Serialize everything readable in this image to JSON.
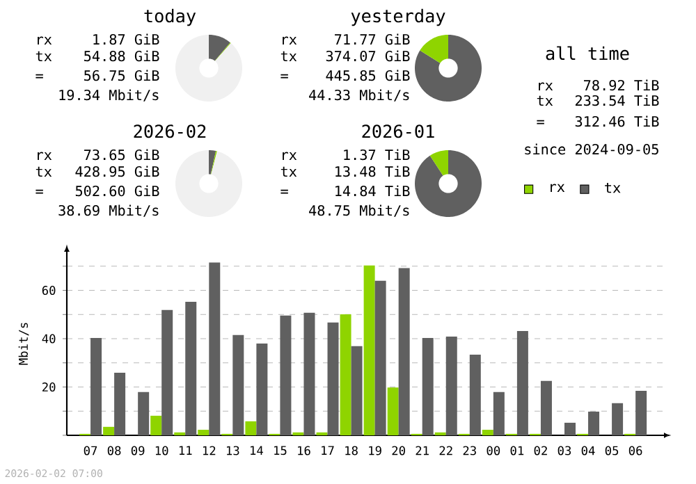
{
  "chart_data": [
    {
      "type": "donut",
      "title": "today",
      "categories": [
        null,
        null,
        null
      ],
      "values": [
        11.1,
        0.4,
        88.5
      ],
      "colors": [
        "#606060",
        "#8fd400",
        "#f0f0f0"
      ],
      "annotations": [
        "rx",
        "1.87 GiB",
        "tx",
        "54.88 GiB",
        "=",
        "56.75 GiB",
        "19.34 Mbit/s"
      ]
    },
    {
      "type": "donut",
      "title": "yesterday",
      "categories": [
        null,
        null
      ],
      "values": [
        83.9,
        16.1
      ],
      "colors": [
        "#606060",
        "#8fd400"
      ],
      "annotations": [
        "rx",
        "71.77 GiB",
        "tx",
        "374.07 GiB",
        "=",
        "445.85 GiB",
        "44.33 Mbit/s"
      ]
    },
    {
      "type": "donut",
      "title": "2026-02",
      "categories": [
        null,
        null,
        null
      ],
      "values": [
        3.4,
        0.6,
        96
      ],
      "colors": [
        "#606060",
        "#8fd400",
        "#f0f0f0"
      ],
      "annotations": [
        "rx",
        "73.65 GiB",
        "tx",
        "428.95 GiB",
        "=",
        "502.60 GiB",
        "38.69 Mbit/s"
      ]
    },
    {
      "type": "donut",
      "title": "2026-01",
      "categories": [
        null,
        null
      ],
      "values": [
        90.8,
        9.2
      ],
      "colors": [
        "#606060",
        "#8fd400"
      ],
      "annotations": [
        "rx",
        "1.37 TiB",
        "tx",
        "13.48 TiB",
        "=",
        "14.84 TiB",
        "48.75 Mbit/s"
      ]
    },
    {
      "type": "other",
      "title": "all time",
      "annotations": [
        "rx",
        "78.92 TiB",
        "tx",
        "233.54 TiB",
        "=",
        "312.46 TiB",
        "since 2024-09-05"
      ]
    },
    {
      "type": "bar",
      "ylabel": "Mbit/s",
      "categories": [
        "07",
        "08",
        "09",
        "10",
        "11",
        "12",
        "13",
        "14",
        "15",
        "16",
        "17",
        "18",
        "19",
        "20",
        "21",
        "22",
        "23",
        "00",
        "01",
        "02",
        "03",
        "04",
        "05",
        "06"
      ],
      "series": [
        {
          "name": "rx",
          "color": "#8fd400",
          "values": [
            0.6,
            3.5,
            0,
            8.1,
            1.2,
            2.3,
            0.6,
            5.8,
            0.6,
            1.2,
            1.2,
            50.1,
            70.3,
            19.8,
            0.6,
            1.2,
            0.6,
            2.3,
            0.6,
            0.6,
            0,
            0.6,
            0,
            0.6
          ]
        },
        {
          "name": "tx",
          "color": "#606060",
          "values": [
            40.3,
            25.9,
            17.9,
            51.9,
            55.3,
            71.5,
            41.5,
            38.0,
            49.6,
            50.7,
            46.7,
            36.9,
            64.0,
            69.2,
            40.3,
            40.9,
            33.4,
            17.9,
            43.2,
            22.5,
            5.2,
            9.8,
            13.3,
            18.4
          ]
        }
      ],
      "ylim": [
        0,
        76
      ],
      "yticks": [
        {
          "value": 0,
          "label": null
        },
        {
          "value": 10,
          "label": null
        },
        20,
        {
          "value": 30,
          "label": null
        },
        40,
        {
          "value": 50,
          "label": null
        },
        60,
        {
          "value": 70,
          "label": null
        }
      ],
      "grid": "y",
      "legend": "top right",
      "annotations": [
        "2026-02-02 07:00"
      ]
    }
  ]
}
